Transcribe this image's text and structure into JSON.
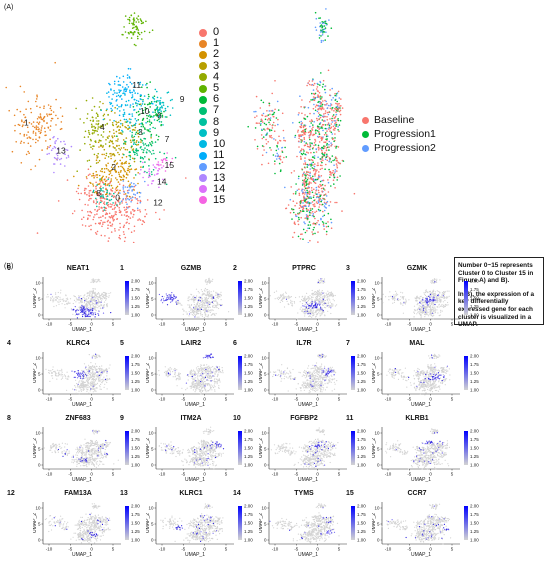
{
  "panel_a_label": "(A)",
  "panel_b_label": "(B)",
  "cluster_legend": [
    {
      "label": "0",
      "color": "#F8766D"
    },
    {
      "label": "1",
      "color": "#E88526"
    },
    {
      "label": "2",
      "color": "#D39200"
    },
    {
      "label": "3",
      "color": "#B79F00"
    },
    {
      "label": "4",
      "color": "#93AA00"
    },
    {
      "label": "5",
      "color": "#5EB300"
    },
    {
      "label": "6",
      "color": "#00BA38"
    },
    {
      "label": "7",
      "color": "#00BF74"
    },
    {
      "label": "8",
      "color": "#00C19F"
    },
    {
      "label": "9",
      "color": "#00BFC4"
    },
    {
      "label": "10",
      "color": "#00B9E3"
    },
    {
      "label": "11",
      "color": "#00ADFA"
    },
    {
      "label": "12",
      "color": "#619CFF"
    },
    {
      "label": "13",
      "color": "#AE87FF"
    },
    {
      "label": "14",
      "color": "#DB72FB"
    },
    {
      "label": "15",
      "color": "#F564E3"
    }
  ],
  "cluster_map_labels": [
    "0",
    "1",
    "2",
    "3",
    "4",
    "6",
    "7",
    "8",
    "9",
    "10",
    "11",
    "12",
    "13",
    "14",
    "15"
  ],
  "condition_legend": [
    {
      "label": "Baseline",
      "color": "#F8766D"
    },
    {
      "label": "Progression1",
      "color": "#00BA38"
    },
    {
      "label": "Progression2",
      "color": "#619CFF"
    }
  ],
  "note": {
    "line1": "Number 0~15 represents Cluster 0 to Cluster 15 in Figure A) and B).",
    "line2": "In B), the expression of a key differentially expressed gene for each cluster is visualized in a UMAP."
  },
  "feature_axes": {
    "xlabel": "UMAP_1",
    "ylabel": "UMAP_2",
    "x_ticks": [
      "-10",
      "-5",
      "0",
      "5"
    ],
    "y_ticks": [
      "0",
      "5",
      "10"
    ],
    "scale_ticks": [
      "2.00",
      "1.75",
      "1.50",
      "1.25",
      "1.00"
    ],
    "scale_low_color": "#D3D3D3",
    "scale_high_color": "#0000FF"
  },
  "gene_panels": [
    {
      "cluster": "0",
      "gene": "NEAT1"
    },
    {
      "cluster": "1",
      "gene": "GZMB"
    },
    {
      "cluster": "2",
      "gene": "PTPRC"
    },
    {
      "cluster": "3",
      "gene": "GZMK"
    },
    {
      "cluster": "4",
      "gene": "KLRC4"
    },
    {
      "cluster": "5",
      "gene": "LAIR2"
    },
    {
      "cluster": "6",
      "gene": "IL7R"
    },
    {
      "cluster": "7",
      "gene": "MAL"
    },
    {
      "cluster": "8",
      "gene": "ZNF683"
    },
    {
      "cluster": "9",
      "gene": "ITM2A"
    },
    {
      "cluster": "10",
      "gene": "FGFBP2"
    },
    {
      "cluster": "11",
      "gene": "KLRB1"
    },
    {
      "cluster": "12",
      "gene": "FAM13A"
    },
    {
      "cluster": "13",
      "gene": "KLRC1"
    },
    {
      "cluster": "14",
      "gene": "TYMS"
    },
    {
      "cluster": "15",
      "gene": "CCR7"
    }
  ]
}
